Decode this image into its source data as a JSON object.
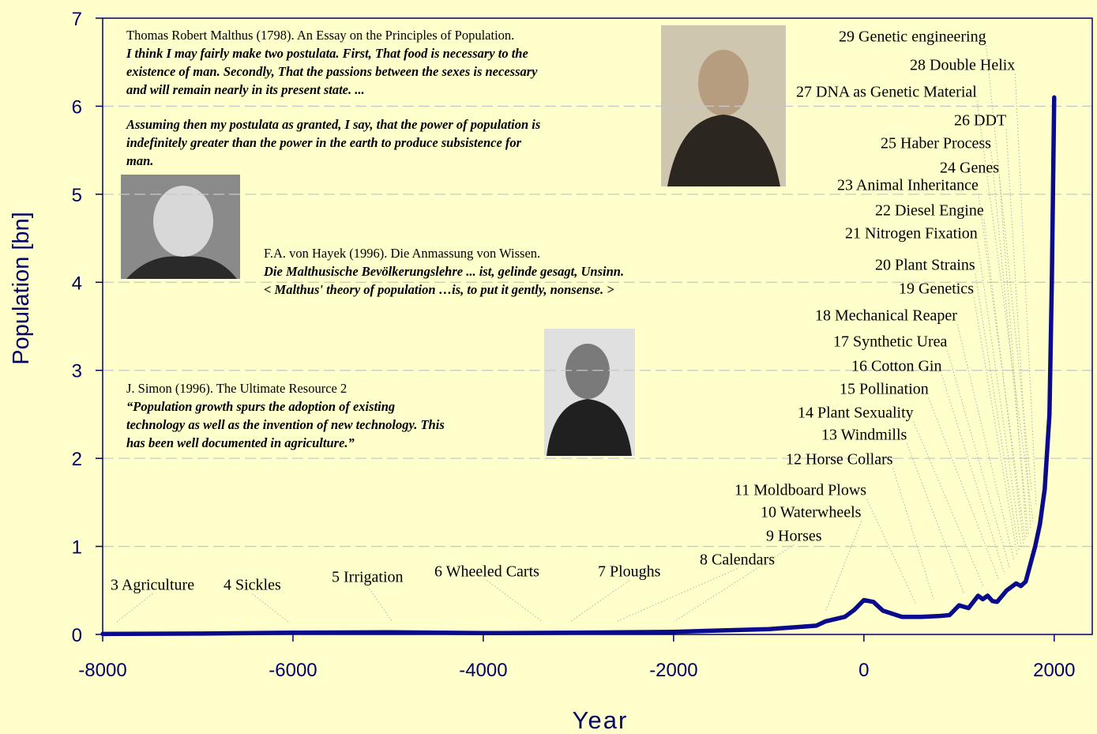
{
  "chart_data": {
    "type": "line",
    "x_label": "Year",
    "y_label": "Population [bn]",
    "x": [
      -8000,
      -7000,
      -6000,
      -5000,
      -4000,
      -3000,
      -2000,
      -1000,
      -500,
      -400,
      -200,
      -100,
      0,
      100,
      200,
      400,
      600,
      800,
      900,
      1000,
      1100,
      1200,
      1250,
      1300,
      1350,
      1400,
      1500,
      1600,
      1650,
      1700,
      1750,
      1800,
      1850,
      1900,
      1950,
      1975,
      2000
    ],
    "values": [
      0.005,
      0.01,
      0.02,
      0.025,
      0.015,
      0.02,
      0.03,
      0.06,
      0.1,
      0.15,
      0.2,
      0.28,
      0.39,
      0.37,
      0.27,
      0.2,
      0.2,
      0.21,
      0.22,
      0.33,
      0.3,
      0.44,
      0.4,
      0.44,
      0.38,
      0.37,
      0.5,
      0.58,
      0.55,
      0.6,
      0.8,
      1.0,
      1.25,
      1.65,
      2.5,
      4.0,
      6.1
    ],
    "color": "#0a0a8c",
    "xlim": [
      -8000,
      2400
    ],
    "ylim": [
      0,
      7
    ],
    "xticks": [
      -8000,
      -6000,
      -4000,
      -2000,
      0,
      2000
    ],
    "yticks": [
      0,
      1,
      2,
      3,
      4,
      5,
      6,
      7
    ],
    "grid": true,
    "annotations": [
      "3 Agriculture",
      "4 Sickles",
      "5 Irrigation",
      "6 Wheeled Carts",
      "7 Ploughs",
      "8 Calendars",
      "9 Horses",
      "10 Waterwheels",
      "11 Moldboard Plows",
      "12 Horse Collars",
      "13 Windmills",
      "14 Plant Sexuality",
      "15 Pollination",
      "16 Cotton Gin",
      "17 Synthetic Urea",
      "18 Mechanical Reaper",
      "19 Genetics",
      "20 Plant Strains",
      "21 Nitrogen Fixation",
      "22 Diesel Engine",
      "23 Animal Inheritance",
      "24 Genes",
      "25 Haber Process",
      "26 DDT",
      "27 DNA as Genetic Material",
      "28 Double Helix",
      "29 Genetic engineering"
    ],
    "quotes": [
      {
        "source": "Thomas Robert Malthus (1798). An Essay on the Principles of Population.",
        "lines": [
          "I think I may fairly make two postulata. First, That food is necessary to the",
          "existence of man. Secondly, That the passions between the sexes is necessary",
          "and will remain nearly in its present state.  ...",
          "Assuming then my postulata as granted, I say, that the power of population is",
          "indefinitely greater than the power in the earth to produce subsistence for",
          "man."
        ]
      },
      {
        "source": "F.A. von Hayek (1996). Die Anmassung von Wissen.",
        "lines": [
          "Die Malthusische Bevölkerungslehre ... ist, gelinde gesagt, Unsinn.",
          "< Malthus' theory of population …is, to put it gently,  nonsense. >"
        ]
      },
      {
        "source": "J. Simon (1996). The Ultimate Resource 2",
        "lines": [
          "“Population growth spurs the adoption of existing",
          "technology as well as the invention of new technology. This",
          "has been well documented in agriculture.”"
        ]
      }
    ]
  }
}
